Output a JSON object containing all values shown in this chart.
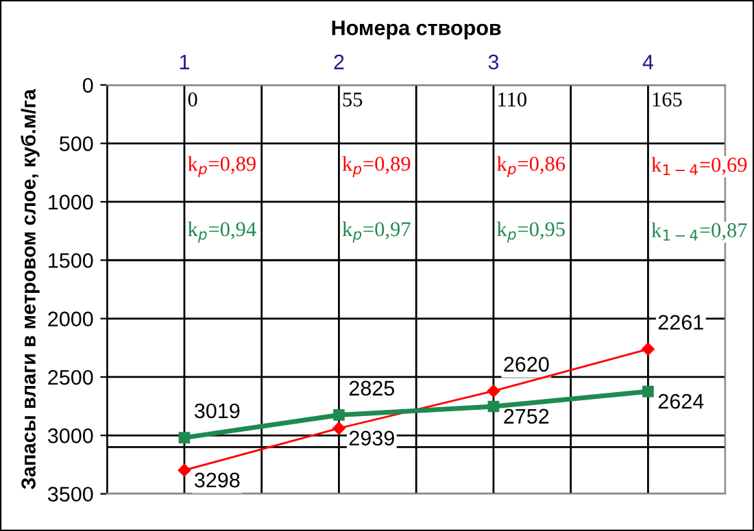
{
  "chart_data": {
    "type": "line",
    "xlabel": "Номера створов",
    "ylabel": "Запасы влаги в метровом слое, куб.м/га",
    "categories": [
      "1",
      "2",
      "3",
      "4"
    ],
    "series": [
      {
        "color": "#ff0000",
        "values": [
          3298,
          2939,
          2620,
          2261
        ],
        "marker": "diamond"
      },
      {
        "color": "#1f8a50",
        "values": [
          3019,
          2825,
          2752,
          2624
        ],
        "marker": "square"
      }
    ],
    "ylim": [
      3500,
      0
    ],
    "yticks": [
      0,
      500,
      1000,
      1500,
      2000,
      2500,
      3000,
      3500
    ],
    "grid": true,
    "data_labels": true,
    "ref_lines": [
      {
        "axis": "y",
        "value": 3100,
        "color": "#000000"
      }
    ],
    "annotations": [
      "0",
      "55",
      "110",
      "165",
      "k$_{p}$=0,89",
      "k$_{p}$=0,89",
      "k$_{p}$=0,86",
      "k$_{1−4}$=0,69",
      "k$_{p}$=0,94",
      "k$_{p}$=0,97",
      "k$_{p}$=0,95",
      "k$_{1−4}$=0,87"
    ]
  }
}
